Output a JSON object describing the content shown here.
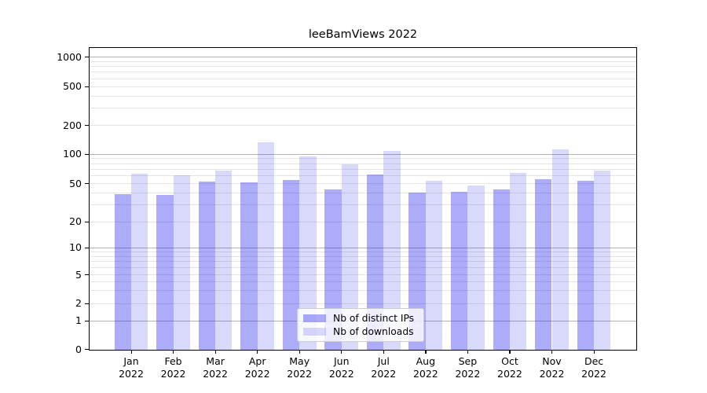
{
  "title": "leeBamViews 2022",
  "chart_data": {
    "type": "bar",
    "title": "leeBamViews 2022",
    "categories": [
      "Jan 2022",
      "Feb 2022",
      "Mar 2022",
      "Apr 2022",
      "May 2022",
      "Jun 2022",
      "Jul 2022",
      "Aug 2022",
      "Sep 2022",
      "Oct 2022",
      "Nov 2022",
      "Dec 2022"
    ],
    "series": [
      {
        "name": "Nb of distinct IPs",
        "color": "rgba(30,30,235,0.37)",
        "values": [
          39,
          38,
          52,
          51,
          54,
          43,
          62,
          40,
          41,
          43,
          55,
          53
        ]
      },
      {
        "name": "Nb of downloads",
        "color": "rgba(30,30,235,0.17)",
        "values": [
          63,
          61,
          68,
          133,
          94,
          79,
          108,
          53,
          48,
          64,
          113,
          68
        ]
      }
    ],
    "xlabel": "",
    "ylabel": "",
    "yscale": "symlog",
    "yticks": [
      0,
      1,
      2,
      5,
      10,
      20,
      50,
      100,
      200,
      500,
      1000
    ],
    "ylim": [
      0,
      1200
    ],
    "grid": true,
    "minor_gridlines": [
      2,
      3,
      4,
      5,
      6,
      7,
      8,
      9,
      20,
      30,
      40,
      50,
      60,
      70,
      80,
      90,
      200,
      300,
      400,
      500,
      600,
      700,
      800,
      900
    ],
    "major_gridlines": [
      1,
      10,
      100,
      1000
    ],
    "legend_position": "lower center"
  },
  "colors": {
    "bar_distinct_ips": "rgba(30,30,235,0.37)",
    "bar_downloads": "rgba(30,30,235,0.17)",
    "grid_major": "#b3b3b3",
    "grid_minor": "#e5e5e5",
    "spine": "#000000"
  }
}
